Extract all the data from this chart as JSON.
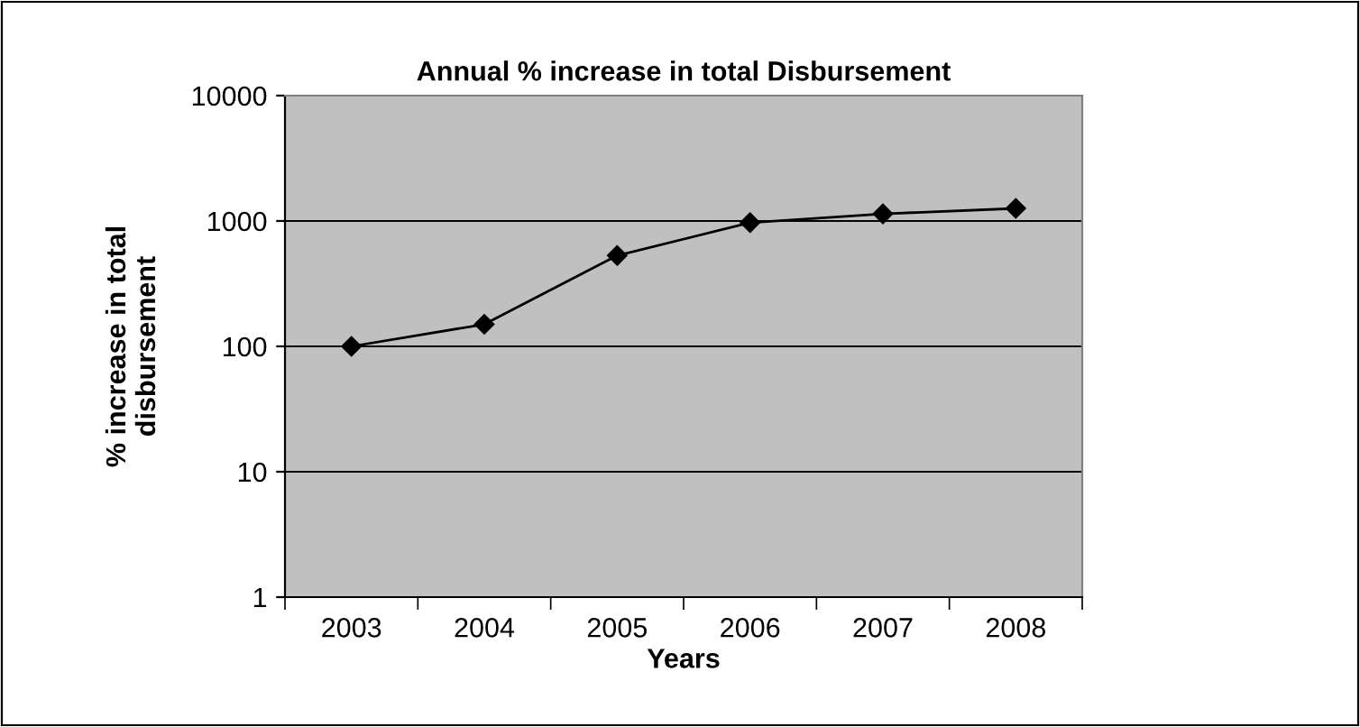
{
  "chart_data": {
    "type": "line",
    "title": "Annual % increase in total Disbursement",
    "xlabel": "Years",
    "ylabel": "% increase in total\ndisbursement",
    "categories": [
      "2003",
      "2004",
      "2005",
      "2006",
      "2007",
      "2008"
    ],
    "series": [
      {
        "color": "#000000",
        "values": [
          100,
          150,
          530,
          970,
          1140,
          1260
        ]
      }
    ],
    "log": true,
    "ylim": [
      1,
      10000
    ],
    "yticks": [
      1,
      10,
      100,
      1000,
      10000
    ],
    "grid": "y",
    "marker": "diamond",
    "line_style": "solid",
    "legend": false
  }
}
